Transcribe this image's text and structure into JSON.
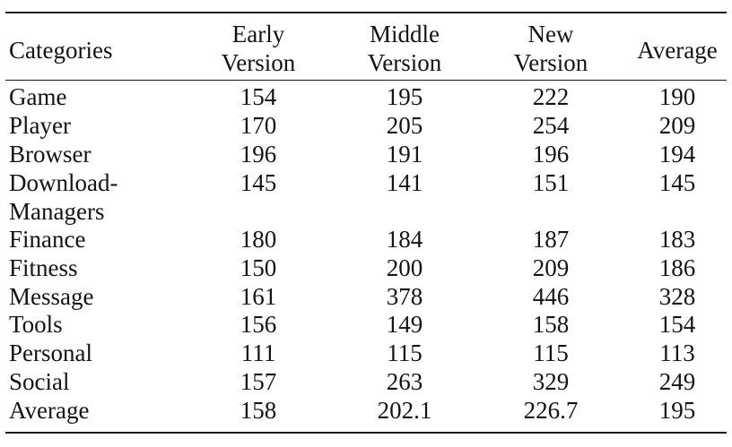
{
  "table": {
    "header": {
      "category": "Categories",
      "early_line1": "Early",
      "early_line2": "Version",
      "middle_line1": "Middle",
      "middle_line2": "Version",
      "new_line1": "New",
      "new_line2": "Version",
      "average": "Average"
    },
    "rows": [
      {
        "category": "Game",
        "early": "154",
        "middle": "195",
        "new": "222",
        "average": "190"
      },
      {
        "category": "Player",
        "early": "170",
        "middle": "205",
        "new": "254",
        "average": "209"
      },
      {
        "category": "Browser",
        "early": "196",
        "middle": "191",
        "new": "196",
        "average": "194"
      },
      {
        "category": "Download-",
        "category_line2": "Managers",
        "early": "145",
        "middle": "141",
        "new": "151",
        "average": "145"
      },
      {
        "category": "Finance",
        "early": "180",
        "middle": "184",
        "new": "187",
        "average": "183"
      },
      {
        "category": "Fitness",
        "early": "150",
        "middle": "200",
        "new": "209",
        "average": "186"
      },
      {
        "category": "Message",
        "early": "161",
        "middle": "378",
        "new": "446",
        "average": "328"
      },
      {
        "category": "Tools",
        "early": "156",
        "middle": "149",
        "new": "158",
        "average": "154"
      },
      {
        "category": "Personal",
        "early": "111",
        "middle": "115",
        "new": "115",
        "average": "113"
      },
      {
        "category": "Social",
        "early": "157",
        "middle": "263",
        "new": "329",
        "average": "249"
      },
      {
        "category": "Average",
        "early": "158",
        "middle": "202.1",
        "new": "226.7",
        "average": "195"
      }
    ]
  }
}
